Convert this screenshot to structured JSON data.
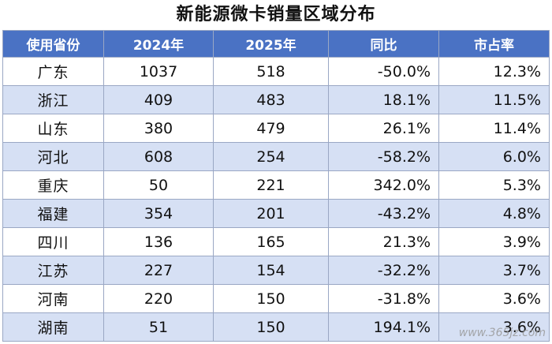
{
  "title": "新能源微卡销量区域分布",
  "chart_data": {
    "type": "table",
    "columns": [
      "使用省份",
      "2024年",
      "2025年",
      "同比",
      "市占率"
    ],
    "rows": [
      [
        "广东",
        "1037",
        "518",
        "-50.0%",
        "12.3%"
      ],
      [
        "浙江",
        "409",
        "483",
        "18.1%",
        "11.5%"
      ],
      [
        "山东",
        "380",
        "479",
        "26.1%",
        "11.4%"
      ],
      [
        "河北",
        "608",
        "254",
        "-58.2%",
        "6.0%"
      ],
      [
        "重庆",
        "50",
        "221",
        "342.0%",
        "5.3%"
      ],
      [
        "福建",
        "354",
        "201",
        "-43.2%",
        "4.8%"
      ],
      [
        "四川",
        "136",
        "165",
        "21.3%",
        "3.9%"
      ],
      [
        "江苏",
        "227",
        "154",
        "-32.2%",
        "3.7%"
      ],
      [
        "河南",
        "220",
        "150",
        "-31.8%",
        "3.6%"
      ],
      [
        "湖南",
        "51",
        "150",
        "194.1%",
        "3.6%"
      ]
    ]
  },
  "watermark": "www.365jz.com"
}
